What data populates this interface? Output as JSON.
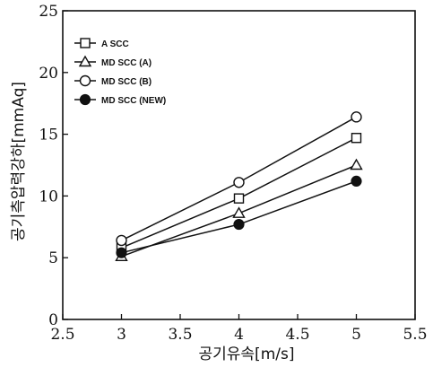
{
  "chart_data": {
    "type": "line",
    "xlabel": "공기유속[m/s]",
    "ylabel": "공기측압력강하[mmAq]",
    "xlim": [
      2.5,
      5.5
    ],
    "ylim": [
      0,
      25
    ],
    "xticks": [
      2.5,
      3,
      3.5,
      4,
      4.5,
      5,
      5.5
    ],
    "xtick_labels": [
      "2.5",
      "3",
      "3.5",
      "4",
      "4.5",
      "5",
      "5.5"
    ],
    "yticks": [
      0,
      5,
      10,
      15,
      20,
      25
    ],
    "ytick_labels": [
      "0",
      "5",
      "10",
      "15",
      "20",
      "25"
    ],
    "grid": false,
    "legend_position": "top-left",
    "x": [
      3,
      4,
      5
    ],
    "series": [
      {
        "name": "A SCC",
        "marker": "square-open",
        "values": [
          5.8,
          9.8,
          14.7
        ]
      },
      {
        "name": "MD SCC (A)",
        "marker": "triangle-open",
        "values": [
          5.1,
          8.6,
          12.5
        ]
      },
      {
        "name": "MD SCC (B)",
        "marker": "circle-open",
        "values": [
          6.4,
          11.1,
          16.4
        ]
      },
      {
        "name": "MD SCC (NEW)",
        "marker": "circle-filled",
        "values": [
          5.4,
          7.7,
          11.2
        ]
      }
    ]
  }
}
